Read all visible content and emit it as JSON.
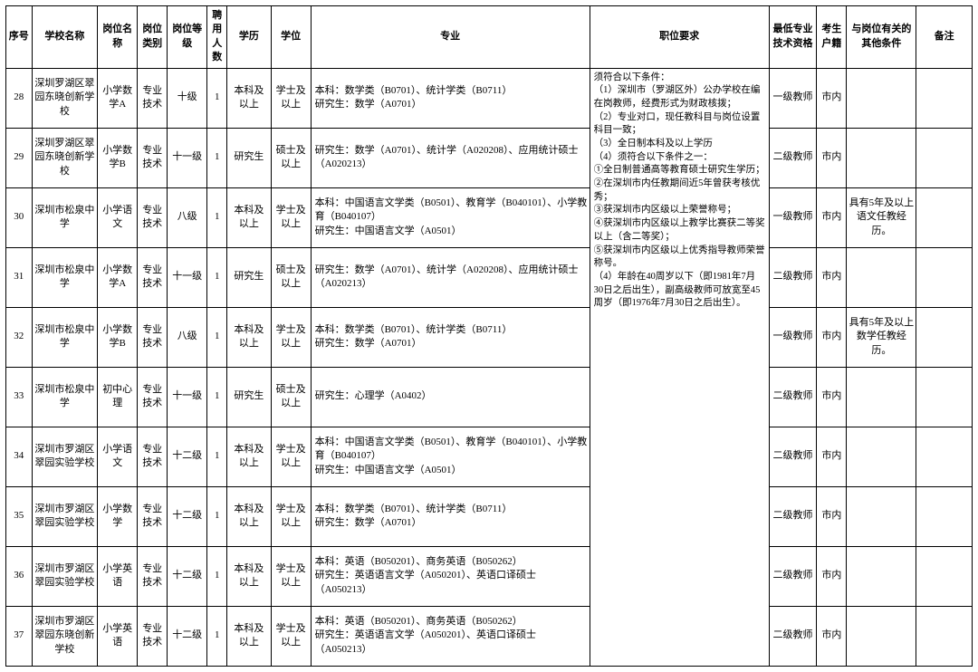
{
  "headers": {
    "idx": "序号",
    "school": "学校名称",
    "posName": "岗位名称",
    "posCat": "岗位类别",
    "posGrade": "岗位等级",
    "num": "聘用人数",
    "edu": "学历",
    "deg": "学位",
    "major": "专业",
    "req": "职位要求",
    "qual": "最低专业技术资格",
    "hukou": "考生户籍",
    "other": "与岗位有关的其他条件",
    "remark": "备注"
  },
  "requirements": "须符合以下条件：\n（1）深圳市（罗湖区外）公办学校在编在岗教师，经费形式为财政核拨；\n（2）专业对口，现任教科目与岗位设置科目一致；\n（3）全日制本科及以上学历\n（4）须符合以下条件之一：\n①全日制普通高等教育硕士研究生学历；\n②在深圳市内任教期间近5年曾获考核优秀；\n③获深圳市内区级以上荣誉称号；\n④获深圳市内区级以上教学比赛获二等奖以上（含二等奖）；\n⑤获深圳市内区级以上优秀指导教师荣誉称号。\n（4）年龄在40周岁以下（即1981年7月 30日之后出生），副高级教师可放宽至45周岁（即1976年7月30日之后出生）。",
  "rows": [
    {
      "idx": "28",
      "school": "深圳罗湖区翠园东晓创新学校",
      "pos": "小学数学A",
      "cat": "专业技术",
      "grade": "十级",
      "num": "1",
      "edu": "本科及以上",
      "deg": "学士及以上",
      "major": "本科：数学类（B0701）、统计学类（B0711）\n研究生：数学（A0701）",
      "qual": "一级教师",
      "hukou": "市内",
      "other": "",
      "remark": ""
    },
    {
      "idx": "29",
      "school": "深圳罗湖区翠园东晓创新学校",
      "pos": "小学数学B",
      "cat": "专业技术",
      "grade": "十一级",
      "num": "1",
      "edu": "研究生",
      "deg": "硕士及以上",
      "major": "研究生：数学（A0701）、统计学（A020208）、应用统计硕士（A020213）",
      "qual": "二级教师",
      "hukou": "市内",
      "other": "",
      "remark": ""
    },
    {
      "idx": "30",
      "school": "深圳市松泉中学",
      "pos": "小学语文",
      "cat": "专业技术",
      "grade": "八级",
      "num": "1",
      "edu": "本科及以上",
      "deg": "学士及以上",
      "major": "本科：中国语言文学类（B0501）、教育学（B040101）、小学教育（B040107）\n研究生：中国语言文学（A0501）",
      "qual": "一级教师",
      "hukou": "市内",
      "other": "具有5年及以上语文任教经历。",
      "remark": ""
    },
    {
      "idx": "31",
      "school": "深圳市松泉中学",
      "pos": "小学数学A",
      "cat": "专业技术",
      "grade": "十一级",
      "num": "1",
      "edu": "研究生",
      "deg": "硕士及以上",
      "major": "研究生：数学（A0701）、统计学（A020208）、应用统计硕士（A020213）",
      "qual": "二级教师",
      "hukou": "市内",
      "other": "",
      "remark": ""
    },
    {
      "idx": "32",
      "school": "深圳市松泉中学",
      "pos": "小学数学B",
      "cat": "专业技术",
      "grade": "八级",
      "num": "1",
      "edu": "本科及以上",
      "deg": "学士及以上",
      "major": "本科：数学类（B0701）、统计学类（B0711）\n研究生：数学（A0701）",
      "qual": "一级教师",
      "hukou": "市内",
      "other": "具有5年及以上数学任教经历。",
      "remark": ""
    },
    {
      "idx": "33",
      "school": "深圳市松泉中学",
      "pos": "初中心理",
      "cat": "专业技术",
      "grade": "十一级",
      "num": "1",
      "edu": "研究生",
      "deg": "硕士及以上",
      "major": "研究生：心理学（A0402）",
      "qual": "二级教师",
      "hukou": "市内",
      "other": "",
      "remark": ""
    },
    {
      "idx": "34",
      "school": "深圳市罗湖区翠园实验学校",
      "pos": "小学语文",
      "cat": "专业技术",
      "grade": "十二级",
      "num": "1",
      "edu": "本科及以上",
      "deg": "学士及以上",
      "major": "本科：中国语言文学类（B0501）、教育学（B040101）、小学教育（B040107）\n研究生：中国语言文学（A0501）",
      "qual": "二级教师",
      "hukou": "市内",
      "other": "",
      "remark": ""
    },
    {
      "idx": "35",
      "school": "深圳市罗湖区翠园实验学校",
      "pos": "小学数学",
      "cat": "专业技术",
      "grade": "十二级",
      "num": "1",
      "edu": "本科及以上",
      "deg": "学士及以上",
      "major": "本科：数学类（B0701）、统计学类（B0711）\n研究生：数学（A0701）",
      "qual": "二级教师",
      "hukou": "市内",
      "other": "",
      "remark": ""
    },
    {
      "idx": "36",
      "school": "深圳市罗湖区翠园实验学校",
      "pos": "小学英语",
      "cat": "专业技术",
      "grade": "十二级",
      "num": "1",
      "edu": "本科及以上",
      "deg": "学士及以上",
      "major": "本科：英语（B050201）、商务英语（B050262）\n研究生：英语语言文学（A050201）、英语口译硕士（A050213）",
      "qual": "二级教师",
      "hukou": "市内",
      "other": "",
      "remark": ""
    },
    {
      "idx": "37",
      "school": "深圳市罗湖区翠园东晓创新学校",
      "pos": "小学英语",
      "cat": "专业技术",
      "grade": "十二级",
      "num": "1",
      "edu": "本科及以上",
      "deg": "学士及以上",
      "major": "本科：英语（B050201）、商务英语（B050262）\n研究生：英语语言文学（A050201）、英语口译硕士（A050213）",
      "qual": "二级教师",
      "hukou": "市内",
      "other": "",
      "remark": ""
    }
  ]
}
